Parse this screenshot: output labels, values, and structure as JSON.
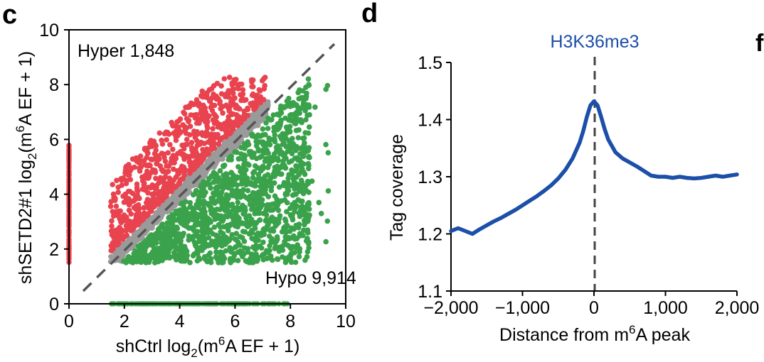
{
  "panel_letters": {
    "c": "c",
    "d": "d",
    "next": "f"
  },
  "chart_data": [
    {
      "type": "scatter",
      "panel": "c",
      "xlabel_main": "shCtrl log",
      "xlabel_sub": "2",
      "xlabel_tail_a": "(m",
      "xlabel_sup": "6",
      "xlabel_tail_b": "A EF + 1)",
      "ylabel_main": "shSETD2#1 log",
      "ylabel_sub": "2",
      "ylabel_tail_a": "(m",
      "ylabel_sup": "6",
      "ylabel_tail_b": "A EF + 1)",
      "xlim": [
        0,
        10
      ],
      "ylim": [
        0,
        10
      ],
      "xticks": [
        "0",
        "2",
        "4",
        "6",
        "8",
        "10"
      ],
      "yticks": [
        "0",
        "2",
        "4",
        "6",
        "8",
        "10"
      ],
      "annotations": {
        "hyper": "Hyper 1,848",
        "hypo": "Hypo 9,914"
      },
      "diagonal": "dashed y = x",
      "series": [
        {
          "group": "hyper",
          "color": "#e8434e",
          "count": 1848
        },
        {
          "group": "unchanged",
          "color": "#9a9a9a"
        },
        {
          "group": "hypo",
          "color": "#3aa24a",
          "count": 9914
        }
      ],
      "grid": false
    },
    {
      "type": "line",
      "panel": "d",
      "title": "H3K36me3",
      "xlabel_a": "Distance from m",
      "xlabel_sup": "6",
      "xlabel_b": "A peak",
      "ylabel": "Tag coverage",
      "xlim": [
        -2000,
        2000
      ],
      "ylim": [
        1.1,
        1.5
      ],
      "xticks": [
        "−2,000",
        "−1,000",
        "0",
        "1,000",
        "2,000"
      ],
      "yticks": [
        "1.1",
        "1.2",
        "1.3",
        "1.4",
        "1.5"
      ],
      "color": "#1c4fa8",
      "marker_line": "dashed at x = 0",
      "x": [
        -2000,
        -1900,
        -1800,
        -1700,
        -1600,
        -1500,
        -1400,
        -1300,
        -1200,
        -1100,
        -1000,
        -900,
        -800,
        -700,
        -600,
        -500,
        -400,
        -300,
        -200,
        -150,
        -100,
        -50,
        0,
        50,
        100,
        150,
        200,
        300,
        400,
        500,
        600,
        700,
        800,
        900,
        1000,
        1100,
        1200,
        1300,
        1400,
        1500,
        1600,
        1700,
        1800,
        1900,
        2000
      ],
      "y": [
        1.205,
        1.21,
        1.205,
        1.2,
        1.208,
        1.215,
        1.222,
        1.228,
        1.235,
        1.242,
        1.25,
        1.258,
        1.266,
        1.275,
        1.285,
        1.297,
        1.312,
        1.332,
        1.36,
        1.38,
        1.405,
        1.425,
        1.432,
        1.425,
        1.405,
        1.383,
        1.365,
        1.343,
        1.332,
        1.325,
        1.318,
        1.31,
        1.302,
        1.3,
        1.3,
        1.298,
        1.3,
        1.298,
        1.297,
        1.298,
        1.3,
        1.302,
        1.3,
        1.302,
        1.304
      ],
      "grid": false
    }
  ]
}
